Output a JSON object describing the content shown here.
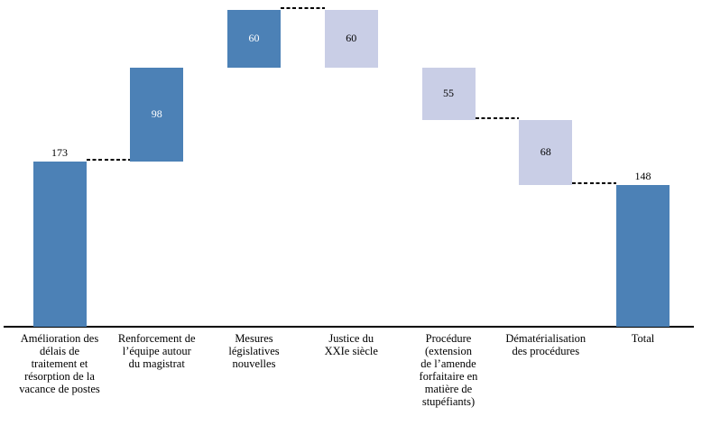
{
  "page": {
    "background": "#FFFFFF"
  },
  "chart_data": {
    "type": "bar",
    "subtype": "waterfall",
    "title": "",
    "xlabel": "",
    "ylabel": "",
    "ylim": [
      0,
      331
    ],
    "grid": false,
    "legend": false,
    "categories": [
      "Amélioration des\ndélais de\ntraitement et\nrésorption de la\nvacance de postes",
      "Renforcement de\nl’équipe autour\ndu magistrat",
      "Mesures\nlégislatives\nnouvelles",
      "Justice du\nXXIe siècle",
      "Procédure\n(extension\nde l’amende\nforfaitaire en\nmatière de\nstupéfiants)",
      "Dématérialisation\ndes procédures",
      "Total"
    ],
    "steps": [
      {
        "label": "Amélioration des\ndélais de\ntraitement et\nrésorption de la\nvacance de postes",
        "value": 173,
        "direction": "increase",
        "bar_style": "dark",
        "value_label": "173",
        "value_label_position": "above"
      },
      {
        "label": "Renforcement de\nl’équipe autour\ndu magistrat",
        "value": 98,
        "direction": "increase",
        "bar_style": "dark",
        "value_label": "98",
        "value_label_position": "inside"
      },
      {
        "label": "Mesures\nlégislatives\nnouvelles",
        "value": 60,
        "direction": "increase",
        "bar_style": "dark",
        "value_label": "60",
        "value_label_position": "inside"
      },
      {
        "label": "Justice du\nXXIe siècle",
        "value": 60,
        "direction": "decrease",
        "bar_style": "light",
        "value_label": "60",
        "value_label_position": "inside"
      },
      {
        "label": "Procédure\n(extension\nde l’amende\nforfaitaire en\nmatière de\nstupéfiants)",
        "value": 55,
        "direction": "decrease",
        "bar_style": "light",
        "value_label": "55",
        "value_label_position": "inside"
      },
      {
        "label": "Dématérialisation\ndes procédures",
        "value": 68,
        "direction": "decrease",
        "bar_style": "light",
        "value_label": "68",
        "value_label_position": "inside"
      },
      {
        "label": "Total",
        "value": 148,
        "direction": "total",
        "bar_style": "dark",
        "value_label": "148",
        "value_label_position": "above"
      }
    ],
    "cumulative_levels": [
      173,
      271,
      331,
      271,
      216,
      148,
      148
    ],
    "connectors_between": [
      [
        0,
        1
      ],
      [
        2,
        3
      ],
      [
        4,
        5
      ],
      [
        5,
        6
      ]
    ],
    "colors": {
      "dark": "#4C81B6",
      "light": "#C9CEE6",
      "value_text_on_dark": "#FFFFFF",
      "value_text_on_light": "#000000",
      "axis": "#000000",
      "connector": "#000000"
    }
  }
}
